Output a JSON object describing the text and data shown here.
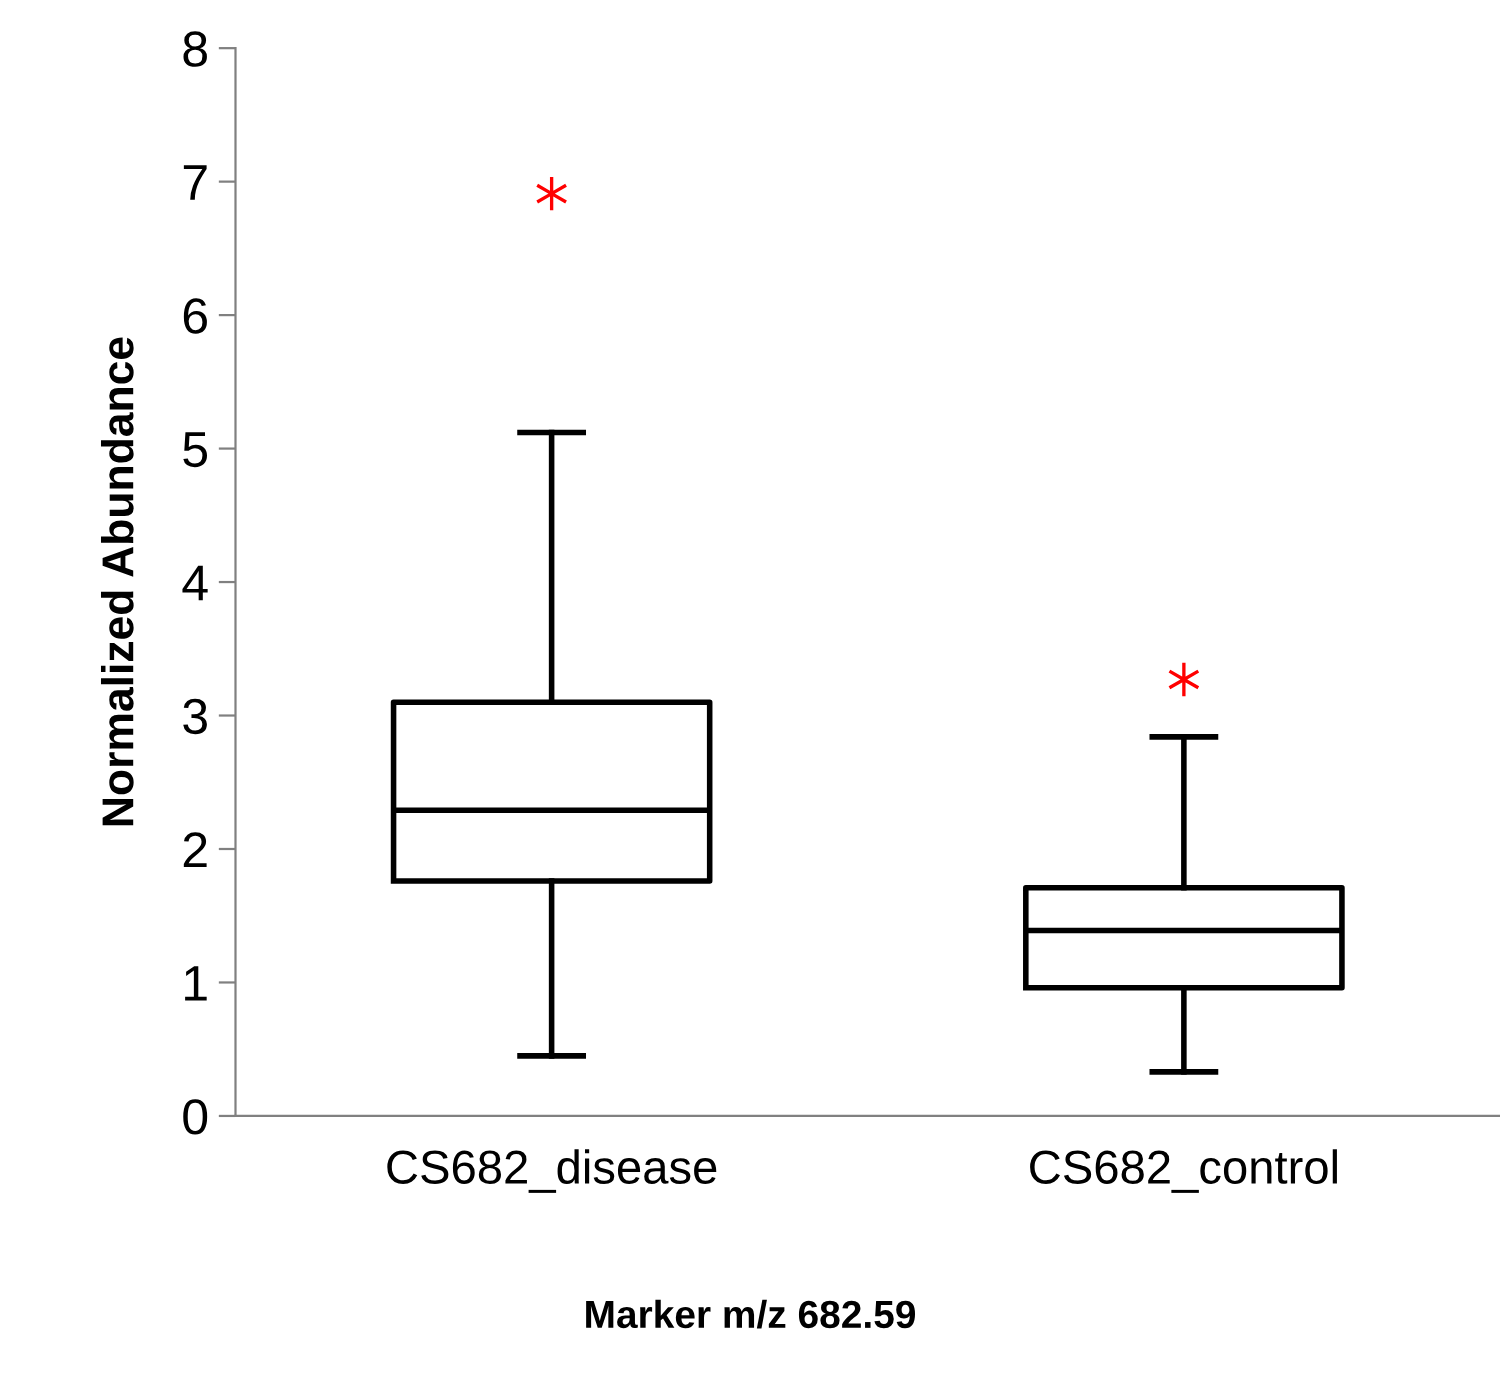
{
  "chart_data": {
    "type": "box",
    "xlabel": "Marker m/z 682.59",
    "ylabel": "Normalized Abundance",
    "categories": [
      "CS682_disease",
      "CS682_control"
    ],
    "series": [
      {
        "color": "#000000",
        "boxes": [
          {
            "low": 0.45,
            "q1": 1.76,
            "median": 2.29,
            "q3": 3.1,
            "high": 5.12
          },
          {
            "low": 0.33,
            "q1": 0.96,
            "median": 1.39,
            "q3": 1.71,
            "high": 2.84
          }
        ]
      },
      {
        "type": "scatter",
        "color": "#ff0000",
        "x": [
          "CS682_disease",
          "CS682_control"
        ],
        "values": [
          6.91,
          3.27
        ],
        "marker": "cross"
      }
    ],
    "ylim": [
      0,
      8
    ],
    "yticks": [
      0,
      1,
      2,
      3,
      4,
      5,
      6,
      7,
      8
    ],
    "grid": false,
    "legend": false
  }
}
